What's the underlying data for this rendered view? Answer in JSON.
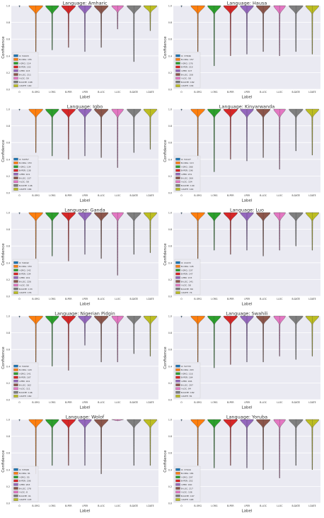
{
  "axis_defaults": {
    "xlabel": "Label",
    "ylabel": "Confidence",
    "yticks": [
      "0.0",
      "0.2",
      "0.4",
      "0.6",
      "0.8",
      "1.0"
    ],
    "categories": [
      "O",
      "B-ORG",
      "I-ORG",
      "B-PER",
      "I-PER",
      "B-LOC",
      "I-LOC",
      "B-DATE",
      "I-DATE"
    ]
  },
  "colors": [
    "#1f77b4",
    "#ff7f0e",
    "#2ca02c",
    "#d62728",
    "#9467bd",
    "#8c564b",
    "#e377c2",
    "#7f7f7f",
    "#bcbd22"
  ],
  "chart_data": [
    {
      "type": "violin",
      "title": "Language: Amharic",
      "xlabel": "Label",
      "ylabel": "Confidence",
      "ylim": [
        0,
        1
      ],
      "categories": [
        "O",
        "B-ORG",
        "I-ORG",
        "B-PER",
        "I-PER",
        "B-LOC",
        "I-LOC",
        "B-DATE",
        "I-DATE"
      ],
      "legend": [
        "O: 54415",
        "B-ORG: 155",
        "I-ORG: 114",
        "B-PER: 152",
        "I-PER: 143",
        "B-LOC: 211",
        "I-LOC: 59",
        "B-DATE: 168",
        "I-DATE: 140"
      ],
      "min": [
        0.98,
        0.45,
        0.47,
        0.5,
        0.45,
        0.5,
        0.72,
        0.33,
        0.7
      ],
      "upper_width": [
        0.08,
        0.95,
        0.9,
        0.95,
        0.9,
        0.95,
        0.8,
        0.95,
        0.9
      ]
    },
    {
      "type": "violin",
      "title": "Language: Hausa",
      "xlabel": "Label",
      "ylabel": "Confidence",
      "ylim": [
        0,
        1
      ],
      "categories": [
        "O",
        "B-ORG",
        "I-ORG",
        "B-PER",
        "I-PER",
        "B-LOC",
        "I-LOC",
        "B-DATE",
        "I-DATE"
      ],
      "legend": [
        "O: 37846",
        "B-ORG: 157",
        "I-ORG: 176",
        "B-PER: 219",
        "I-PER: 127",
        "B-LOC: 158",
        "I-LOC: 58",
        "B-DATE: 182",
        "I-DATE: 109"
      ],
      "min": [
        0.98,
        0.45,
        0.28,
        0.4,
        0.42,
        0.45,
        0.4,
        0.45,
        0.42
      ],
      "upper_width": [
        0.08,
        0.95,
        0.9,
        0.95,
        0.9,
        0.95,
        0.8,
        0.95,
        0.9
      ]
    },
    {
      "type": "violin",
      "title": "Language: Igbo",
      "xlabel": "Label",
      "ylabel": "Confidence",
      "ylim": [
        0,
        1
      ],
      "categories": [
        "O",
        "B-ORG",
        "I-ORG",
        "B-PER",
        "I-PER",
        "B-LOC",
        "I-LOC",
        "B-DATE",
        "I-DATE"
      ],
      "legend": [
        "O: 54357",
        "B-ORG: 153",
        "I-ORG: 134",
        "B-PER: 138",
        "I-PER: 101",
        "B-LOC: 137",
        "I-LOC: 58",
        "B-DATE: 146",
        "I-DATE: 166"
      ],
      "min": [
        0.98,
        0.48,
        0.44,
        0.4,
        0.44,
        0.42,
        0.3,
        0.48,
        0.52
      ],
      "upper_width": [
        0.08,
        0.95,
        0.9,
        0.95,
        0.9,
        0.95,
        0.8,
        0.95,
        0.9
      ]
    },
    {
      "type": "violin",
      "title": "Language: Kinyarwanda",
      "xlabel": "Label",
      "ylabel": "Confidence",
      "ylim": [
        0,
        1
      ],
      "categories": [
        "O",
        "B-ORG",
        "I-ORG",
        "B-PER",
        "I-PER",
        "B-LOC",
        "I-LOC",
        "B-DATE",
        "I-DATE"
      ],
      "legend": [
        "O: 54127",
        "B-ORG: 113",
        "I-ORG: 268",
        "B-PER: 196",
        "I-PER: 231",
        "B-LOC: 269",
        "I-LOC: 154",
        "B-DATE: 140",
        "I-DATE: 144"
      ],
      "min": [
        0.98,
        0.4,
        0.25,
        0.4,
        0.38,
        0.42,
        0.28,
        0.5,
        0.45
      ],
      "upper_width": [
        0.08,
        0.95,
        0.9,
        0.95,
        0.9,
        0.95,
        0.8,
        0.95,
        0.9
      ]
    },
    {
      "type": "violin",
      "title": "Language: Ganda",
      "xlabel": "Label",
      "ylabel": "Confidence",
      "ylim": [
        0,
        1
      ],
      "categories": [
        "O",
        "B-ORG",
        "I-ORG",
        "B-PER",
        "I-PER",
        "B-LOC",
        "I-LOC",
        "B-DATE",
        "I-DATE"
      ],
      "legend": [
        "O: 54042",
        "B-ORG: 153",
        "I-ORG: 142",
        "B-PER: 104",
        "I-PER: 161",
        "B-LOC: 226",
        "I-LOC: 58",
        "B-DATE: 133",
        "I-DATE: 176"
      ],
      "min": [
        0.98,
        0.45,
        0.48,
        0.42,
        0.5,
        0.45,
        0.25,
        0.5,
        0.52
      ],
      "upper_width": [
        0.08,
        0.95,
        0.9,
        0.95,
        0.9,
        0.95,
        0.8,
        0.95,
        0.9
      ]
    },
    {
      "type": "violin",
      "title": "Language: Luo",
      "xlabel": "Label",
      "ylabel": "Confidence",
      "ylim": [
        0,
        1
      ],
      "categories": [
        "O",
        "B-ORG",
        "I-ORG",
        "B-PER",
        "I-PER",
        "B-LOC",
        "I-LOC",
        "B-DATE",
        "I-DATE"
      ],
      "legend": [
        "O: 41472",
        "B-ORG: 145",
        "I-ORG: 107",
        "B-PER: 147",
        "I-PER: 133",
        "B-LOC: 141",
        "I-LOC: 58",
        "B-DATE: 89",
        "I-DATE: 74"
      ],
      "min": [
        0.98,
        0.45,
        0.55,
        0.5,
        0.55,
        0.48,
        0.55,
        0.6,
        0.55
      ],
      "upper_width": [
        0.08,
        0.95,
        0.9,
        0.95,
        0.9,
        0.95,
        0.8,
        0.95,
        0.9
      ]
    },
    {
      "type": "violin",
      "title": "Language: Nigerian Pidgin",
      "xlabel": "Label",
      "ylabel": "Confidence",
      "ylim": [
        0,
        1
      ],
      "categories": [
        "O",
        "B-ORG",
        "I-ORG",
        "B-PER",
        "I-PER",
        "B-LOC",
        "I-LOC",
        "B-DATE",
        "I-DATE"
      ],
      "legend": [
        "O: 54432",
        "B-ORG: 120",
        "I-ORG: 141",
        "B-PER: 167",
        "I-PER: 161",
        "B-LOC: 162",
        "I-LOC: 111",
        "B-DATE: 146",
        "I-DATE: 160"
      ],
      "min": [
        0.98,
        0.45,
        0.4,
        0.35,
        0.65,
        0.45,
        0.45,
        0.55,
        0.52
      ],
      "upper_width": [
        0.08,
        0.95,
        0.9,
        0.95,
        0.9,
        0.95,
        0.8,
        0.95,
        0.9
      ]
    },
    {
      "type": "violin",
      "title": "Language: Swahili",
      "xlabel": "Label",
      "ylabel": "Confidence",
      "ylim": [
        0,
        1
      ],
      "categories": [
        "O",
        "B-ORG",
        "I-ORG",
        "B-PER",
        "I-PER",
        "B-LOC",
        "I-LOC",
        "B-DATE",
        "I-DATE"
      ],
      "legend": [
        "O: 52733",
        "B-ORG: 203",
        "I-ORG: 116",
        "B-PER: 164",
        "I-PER: 166",
        "B-LOC: 297",
        "I-LOC: 84",
        "B-DATE: 182",
        "I-DATE: 81"
      ],
      "min": [
        0.98,
        0.45,
        0.38,
        0.42,
        0.45,
        0.45,
        0.52,
        0.48,
        0.52
      ],
      "upper_width": [
        0.08,
        0.95,
        0.9,
        0.95,
        0.9,
        0.95,
        0.8,
        0.95,
        0.9
      ]
    },
    {
      "type": "violin",
      "title": "Language: Wolof",
      "xlabel": "Label",
      "ylabel": "Confidence",
      "ylim": [
        0,
        1
      ],
      "categories": [
        "O",
        "B-ORG",
        "I-ORG",
        "B-PER",
        "I-PER",
        "B-LOC",
        "I-LOC",
        "B-DATE",
        "I-DATE"
      ],
      "legend": [
        "O: 53508",
        "B-ORG: 91",
        "I-ORG: 55",
        "B-PER: 206",
        "I-PER: 263",
        "B-LOC: 178",
        "I-LOC: 8",
        "B-DATE: 91",
        "I-DATE: 103"
      ],
      "min": [
        0.98,
        0.35,
        0.45,
        0.45,
        0.45,
        0.35,
        0.98,
        0.45,
        0.45
      ],
      "upper_width": [
        0.08,
        0.95,
        0.9,
        0.95,
        0.9,
        0.95,
        0.8,
        0.95,
        0.9
      ]
    },
    {
      "type": "violin",
      "title": "Language: Yoruba",
      "xlabel": "Label",
      "ylabel": "Confidence",
      "ylim": [
        0,
        1
      ],
      "categories": [
        "O",
        "B-ORG",
        "I-ORG",
        "B-PER",
        "I-PER",
        "B-LOC",
        "I-LOC",
        "B-DATE",
        "I-DATE"
      ],
      "legend": [
        "O: 37916",
        "B-ORG: 181",
        "I-ORG: 297",
        "B-PER: 252",
        "I-PER: 160",
        "B-LOC: 217",
        "I-LOC: 136",
        "B-DATE: 167",
        "I-DATE: 148"
      ],
      "min": [
        0.98,
        0.45,
        0.42,
        0.45,
        0.42,
        0.4,
        0.3,
        0.45,
        0.4
      ],
      "upper_width": [
        0.08,
        0.95,
        0.9,
        0.95,
        0.9,
        0.95,
        0.8,
        0.95,
        0.9
      ]
    }
  ]
}
